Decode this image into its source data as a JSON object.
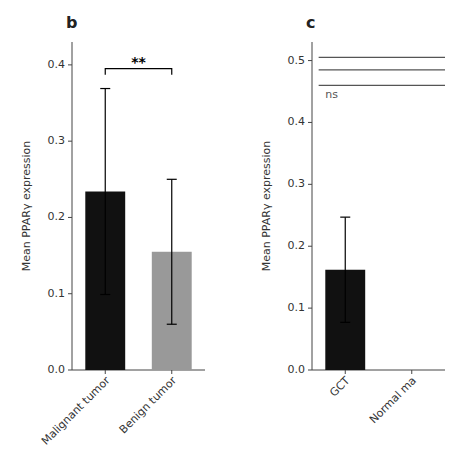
{
  "chart_data": [
    {
      "type": "bar",
      "title": "b",
      "categories": [
        "Malignant tumor",
        "Benign tumor"
      ],
      "values": [
        0.234,
        0.155
      ],
      "errors": [
        0.135,
        0.095
      ],
      "colors": [
        "#111111",
        "#999999"
      ],
      "y_label": "Mean PPARγ expression",
      "ylim": [
        0,
        0.43
      ],
      "yticks": [
        {
          "value": 0.0,
          "label": "0.0"
        },
        0.1,
        0.2,
        0.3,
        0.4
      ],
      "grid": false,
      "significance": {
        "text": "**",
        "y": 0.395,
        "from": "Malignant tumor",
        "to": "Benign tumor"
      }
    },
    {
      "type": "bar",
      "title": "c",
      "categories": [
        "GCT",
        "Normal ma"
      ],
      "values": [
        0.162,
        null
      ],
      "errors": [
        0.085,
        null
      ],
      "colors": [
        "#111111",
        null
      ],
      "y_label": "Mean PPARγ expression",
      "ylim": [
        0,
        0.53
      ],
      "yticks": [
        {
          "value": 0.0,
          "label": "0.0"
        },
        0.1,
        0.2,
        0.3,
        0.4,
        0.5
      ],
      "grid": false,
      "reference_lines": [
        0.505,
        0.485,
        0.46
      ],
      "annotation": {
        "text": "ns",
        "y": 0.455
      }
    }
  ]
}
